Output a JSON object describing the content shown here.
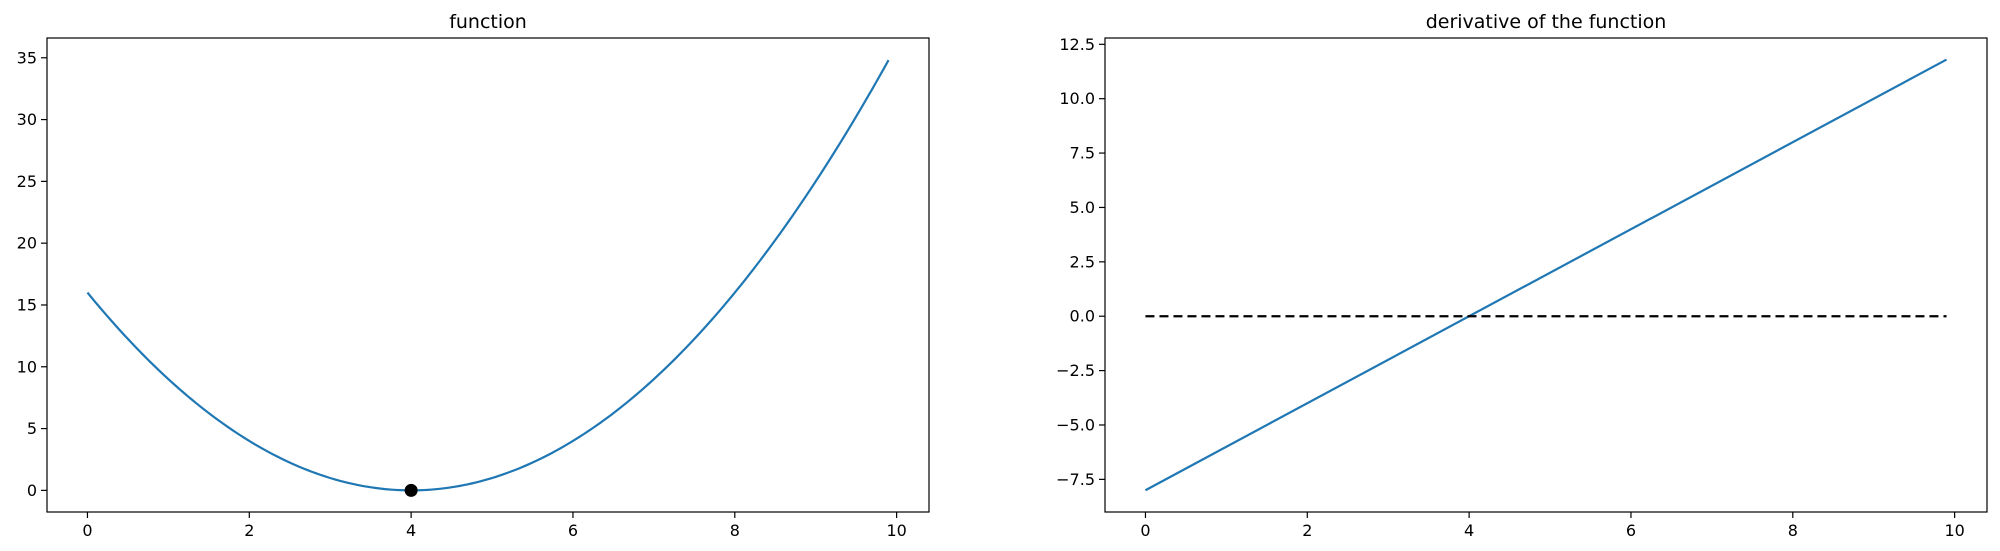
{
  "chart_data": [
    {
      "type": "line",
      "title": "function",
      "xlabel": "",
      "ylabel": "",
      "xlim": [
        -0.5,
        10.4
      ],
      "ylim": [
        -1.75,
        36.6
      ],
      "xticks": [
        0,
        2,
        4,
        6,
        8,
        10
      ],
      "yticks": [
        0,
        5,
        10,
        15,
        20,
        25,
        30,
        35
      ],
      "grid": false,
      "series": [
        {
          "color": "#1f77b4",
          "function": "(x-4)^2",
          "x_range": [
            0,
            9.9
          ],
          "x": [
            0,
            1,
            2,
            3,
            4,
            5,
            6,
            7,
            8,
            9,
            9.9
          ],
          "y": [
            16,
            9,
            4,
            1,
            0,
            1,
            4,
            9,
            16,
            25,
            34.81
          ]
        }
      ],
      "markers": [
        {
          "x": 4,
          "y": 0,
          "color": "#000000"
        }
      ]
    },
    {
      "type": "line",
      "title": "derivative of the function",
      "xlabel": "",
      "ylabel": "",
      "xlim": [
        -0.5,
        10.4
      ],
      "ylim": [
        -9.0,
        12.79
      ],
      "xticks": [
        0,
        2,
        4,
        6,
        8,
        10
      ],
      "yticks": [
        -7.5,
        -5.0,
        -2.5,
        0.0,
        2.5,
        5.0,
        7.5,
        10.0,
        12.5
      ],
      "ytick_labels": [
        "−7.5",
        "−5.0",
        "−2.5",
        "0.0",
        "2.5",
        "5.0",
        "7.5",
        "10.0",
        "12.5"
      ],
      "grid": false,
      "series": [
        {
          "color": "#1f77b4",
          "function": "2(x-4)",
          "x": [
            0,
            9.9
          ],
          "y": [
            -8,
            11.8
          ]
        },
        {
          "color": "#000000",
          "dashed": true,
          "x": [
            0,
            9.9
          ],
          "y": [
            0,
            0
          ]
        }
      ]
    }
  ]
}
